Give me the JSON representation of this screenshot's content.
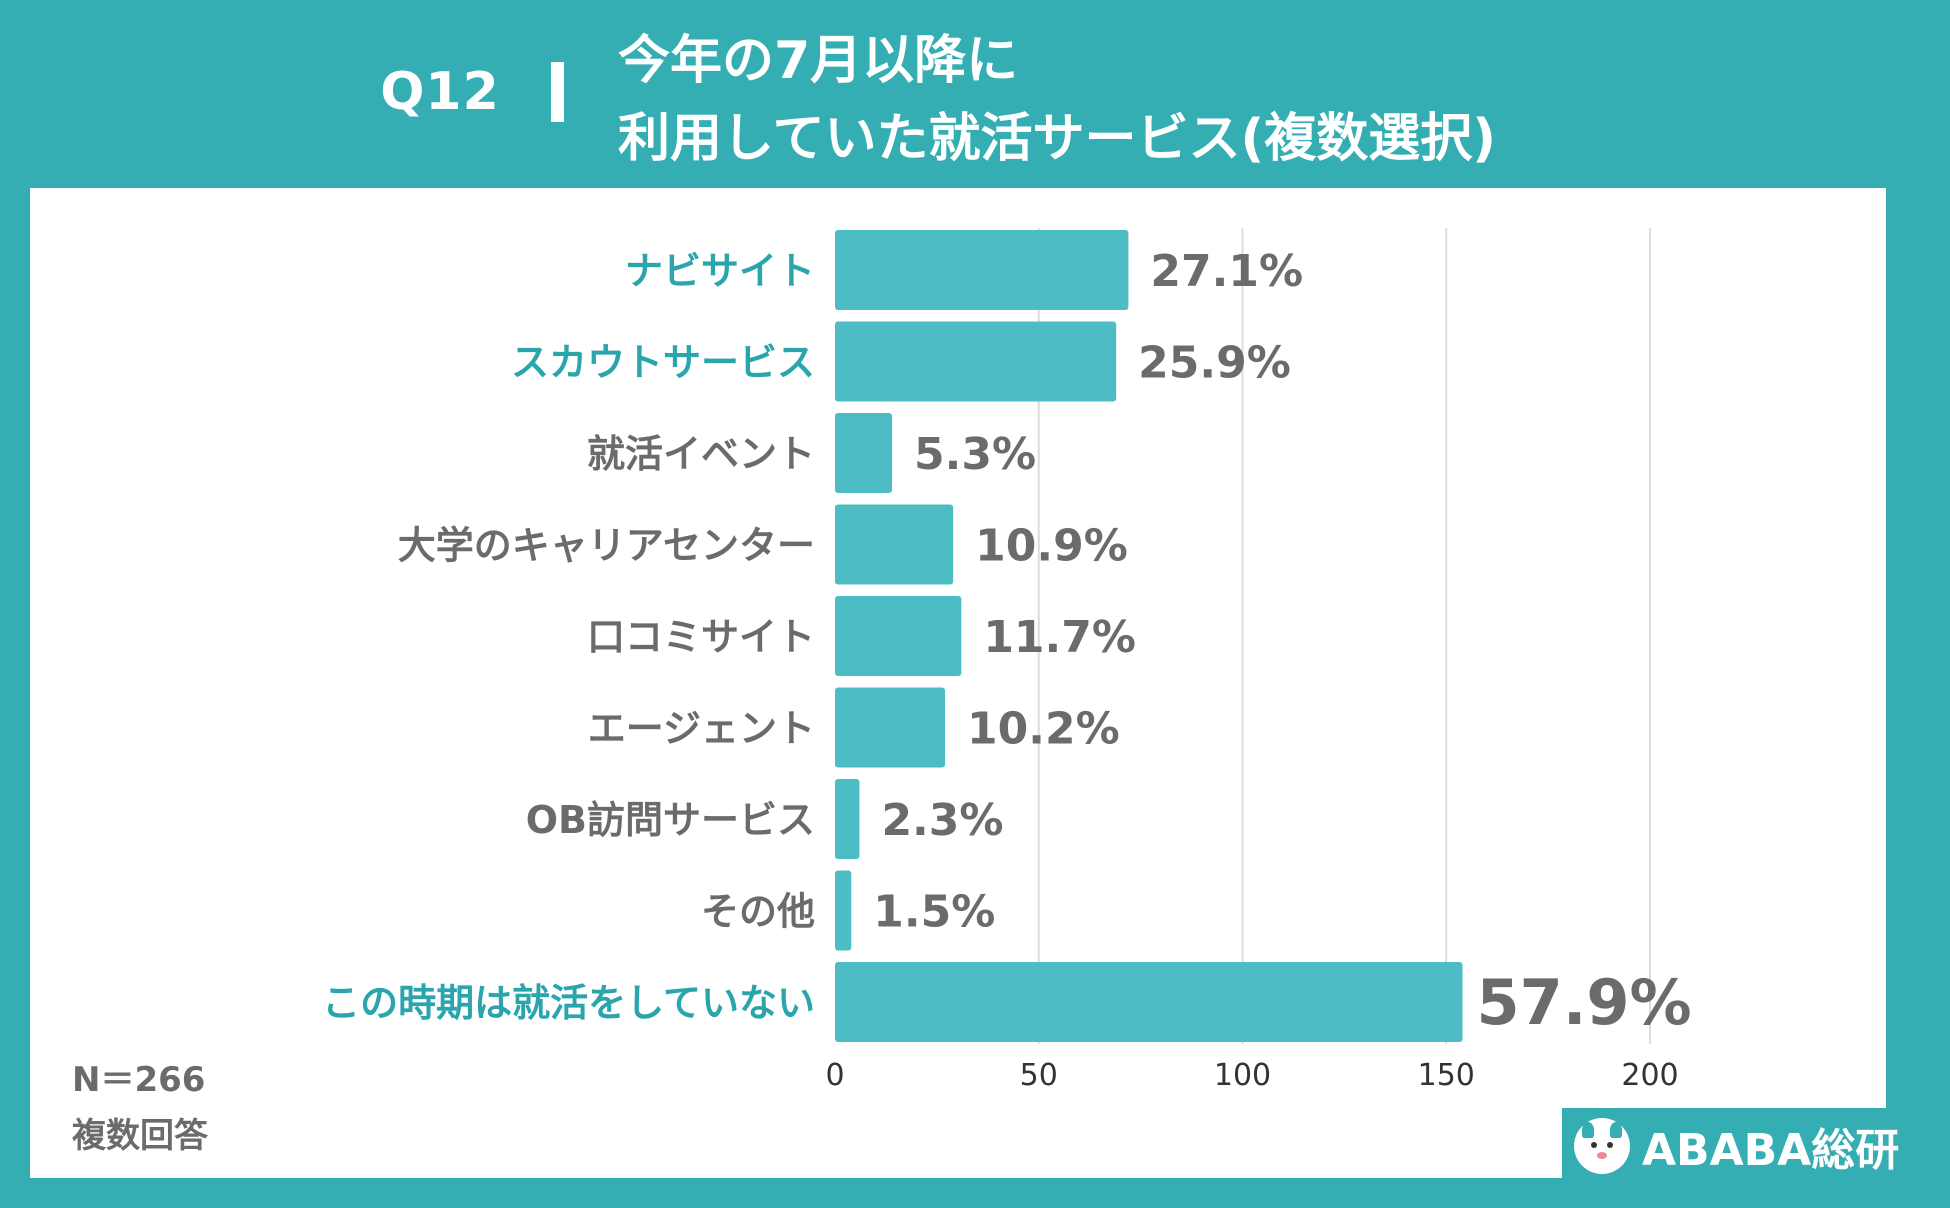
{
  "header": {
    "question": "Q12",
    "title_line1": "今年の7月以降に",
    "title_line2": "利用していた就活サービス(複数選択)"
  },
  "colors": {
    "background": "#34adb3",
    "bar": "#4dbcc5",
    "highlight_label": "#2aa5ad",
    "text_gray": "#6b6b6b"
  },
  "chart_data": {
    "type": "bar",
    "orientation": "horizontal",
    "categories": [
      "ナビサイト",
      "スカウトサービス",
      "就活イベント",
      "大学のキャリアセンター",
      "口コミサイト",
      "エージェント",
      "OB訪問サービス",
      "その他",
      "この時期は就活をしていない"
    ],
    "highlighted": [
      true,
      true,
      false,
      false,
      false,
      false,
      false,
      false,
      true
    ],
    "values": [
      72,
      69,
      14,
      29,
      31,
      27,
      6,
      4,
      154
    ],
    "percent_labels": [
      "27.1%",
      "25.9%",
      "5.3%",
      "10.9%",
      "11.7%",
      "10.2%",
      "2.3%",
      "1.5%",
      "57.9%"
    ],
    "xlim": [
      0,
      200
    ],
    "xticks": [
      0,
      50,
      100,
      150,
      200
    ],
    "grid": true,
    "legend": "none"
  },
  "notes": {
    "sample": "N＝266",
    "multi": "複数回答"
  },
  "logo": {
    "text": "ABABA総研",
    "icon": "alpaca-icon"
  }
}
